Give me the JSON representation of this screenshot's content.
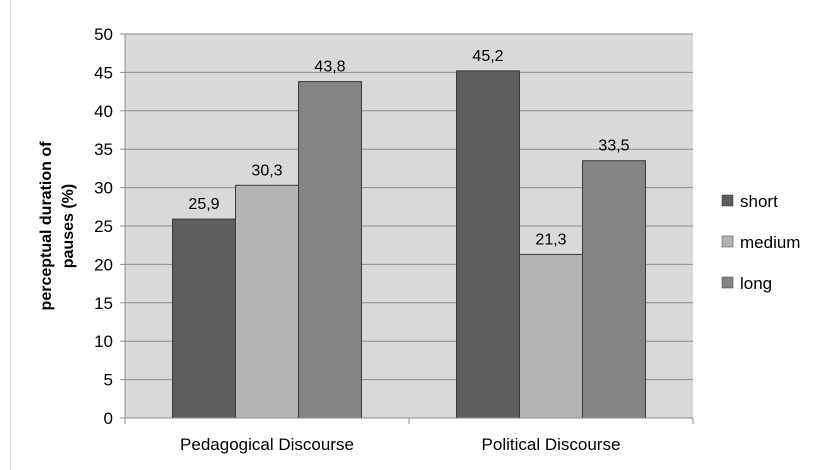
{
  "chart_data": {
    "type": "bar",
    "title": "",
    "xlabel": "",
    "ylabel": "perceptual duration of pauses (%)",
    "ylim": [
      0,
      50
    ],
    "yticks": [
      0,
      5,
      10,
      15,
      20,
      25,
      30,
      35,
      40,
      45,
      50
    ],
    "categories": [
      "Pedagogical Discourse",
      "Political Discourse"
    ],
    "series": [
      {
        "name": "short",
        "values": [
          25.9,
          45.2
        ],
        "labels": [
          "25,9",
          "45,2"
        ],
        "color": "#5e5e5e"
      },
      {
        "name": "medium",
        "values": [
          30.3,
          21.3
        ],
        "labels": [
          "30,3",
          "21,3"
        ],
        "color": "#b4b4b4"
      },
      {
        "name": "long",
        "values": [
          43.8,
          33.5
        ],
        "labels": [
          "43,8",
          "33,5"
        ],
        "color": "#848484"
      }
    ],
    "grid": true,
    "plot_background": "#d9d9d9",
    "legend_position": "right"
  }
}
